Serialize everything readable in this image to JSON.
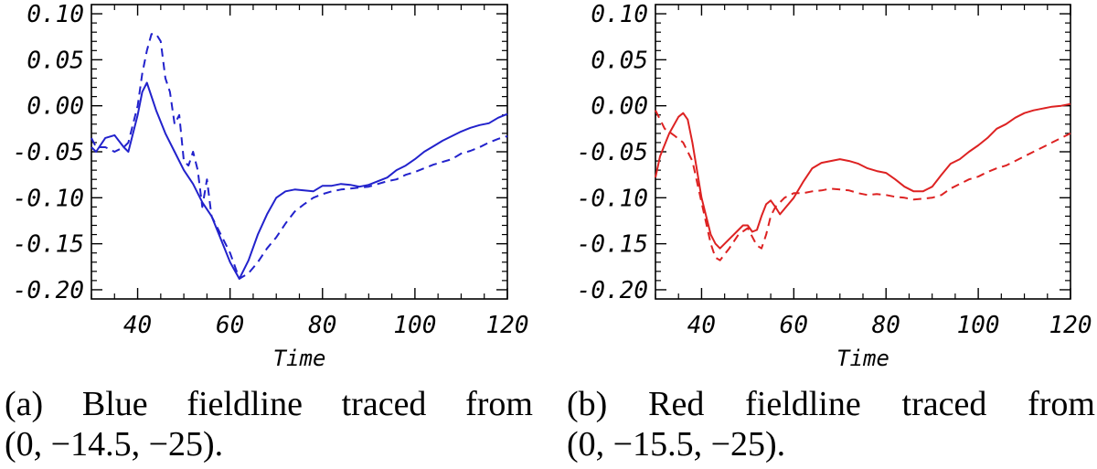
{
  "chart_data": [
    {
      "type": "line",
      "xlabel": "Time",
      "ylabel": "",
      "title": "",
      "xlim": [
        30,
        120
      ],
      "ylim": [
        -0.21,
        0.11
      ],
      "xticks": [
        40,
        60,
        80,
        100,
        120
      ],
      "xtick_labels": [
        "40",
        "60",
        "80",
        "100",
        "120"
      ],
      "yticks": [
        0.1,
        0.05,
        0.0,
        -0.05,
        -0.1,
        -0.15,
        -0.2
      ],
      "ytick_labels": [
        "0.10",
        "0.05",
        "0.00",
        "-0.05",
        "-0.10",
        "-0.15",
        "-0.20"
      ],
      "grid": false,
      "color": "#2222cc",
      "series": [
        {
          "style": "solid",
          "x": [
            30,
            31,
            33,
            35,
            37,
            38,
            40,
            41,
            42,
            44,
            46,
            48,
            50,
            52,
            54,
            56,
            58,
            60,
            62,
            64,
            66,
            68,
            70,
            72,
            74,
            76,
            78,
            80,
            82,
            84,
            86,
            88,
            90,
            92,
            94,
            96,
            98,
            100,
            102,
            104,
            106,
            108,
            110,
            112,
            114,
            116,
            118,
            120
          ],
          "y": [
            -0.045,
            -0.05,
            -0.035,
            -0.032,
            -0.045,
            -0.05,
            -0.01,
            0.015,
            0.025,
            -0.005,
            -0.03,
            -0.05,
            -0.07,
            -0.085,
            -0.105,
            -0.12,
            -0.145,
            -0.17,
            -0.188,
            -0.168,
            -0.14,
            -0.118,
            -0.1,
            -0.093,
            -0.091,
            -0.092,
            -0.093,
            -0.087,
            -0.087,
            -0.085,
            -0.086,
            -0.088,
            -0.086,
            -0.082,
            -0.078,
            -0.07,
            -0.065,
            -0.058,
            -0.05,
            -0.044,
            -0.038,
            -0.033,
            -0.028,
            -0.024,
            -0.021,
            -0.019,
            -0.013,
            -0.009
          ]
        },
        {
          "style": "dashed",
          "x": [
            30,
            31,
            33,
            35,
            37,
            38,
            40,
            41,
            42,
            43,
            44,
            45,
            46,
            47,
            48,
            49,
            50,
            51,
            52,
            53,
            54,
            55,
            56,
            58,
            60,
            62,
            64,
            66,
            68,
            70,
            72,
            74,
            76,
            78,
            80,
            82,
            84,
            86,
            88,
            90,
            92,
            94,
            96,
            98,
            100,
            102,
            104,
            106,
            108,
            110,
            112,
            114,
            116,
            118,
            120
          ],
          "y": [
            -0.035,
            -0.045,
            -0.045,
            -0.05,
            -0.045,
            -0.04,
            0.0,
            0.035,
            0.06,
            0.078,
            0.078,
            0.07,
            0.03,
            0.015,
            -0.02,
            -0.01,
            -0.06,
            -0.065,
            -0.05,
            -0.07,
            -0.11,
            -0.08,
            -0.12,
            -0.14,
            -0.16,
            -0.188,
            -0.182,
            -0.17,
            -0.155,
            -0.143,
            -0.128,
            -0.115,
            -0.107,
            -0.1,
            -0.096,
            -0.093,
            -0.091,
            -0.09,
            -0.089,
            -0.088,
            -0.085,
            -0.082,
            -0.08,
            -0.075,
            -0.072,
            -0.068,
            -0.064,
            -0.061,
            -0.058,
            -0.052,
            -0.049,
            -0.045,
            -0.04,
            -0.036,
            -0.033
          ]
        }
      ]
    },
    {
      "type": "line",
      "xlabel": "Time",
      "ylabel": "",
      "title": "",
      "xlim": [
        30,
        120
      ],
      "ylim": [
        -0.21,
        0.11
      ],
      "xticks": [
        40,
        60,
        80,
        100,
        120
      ],
      "xtick_labels": [
        "40",
        "60",
        "80",
        "100",
        "120"
      ],
      "yticks": [
        0.1,
        0.05,
        0.0,
        -0.05,
        -0.1,
        -0.15,
        -0.2
      ],
      "ytick_labels": [
        "0.10",
        "0.05",
        "0.00",
        "-0.05",
        "-0.10",
        "-0.15",
        "-0.20"
      ],
      "grid": false,
      "color": "#dd2222",
      "series": [
        {
          "style": "solid",
          "x": [
            30,
            31,
            33,
            35,
            36,
            37,
            38,
            40,
            42,
            43,
            44,
            45,
            46,
            48,
            49,
            50,
            51,
            52,
            53,
            54,
            55,
            56,
            57,
            58,
            60,
            62,
            64,
            66,
            68,
            70,
            72,
            74,
            76,
            78,
            80,
            82,
            84,
            86,
            88,
            90,
            92,
            94,
            96,
            98,
            100,
            102,
            104,
            106,
            108,
            110,
            112,
            114,
            116,
            118,
            120
          ],
          "y": [
            -0.078,
            -0.055,
            -0.03,
            -0.012,
            -0.008,
            -0.015,
            -0.04,
            -0.1,
            -0.14,
            -0.15,
            -0.155,
            -0.15,
            -0.145,
            -0.135,
            -0.13,
            -0.13,
            -0.137,
            -0.135,
            -0.12,
            -0.107,
            -0.103,
            -0.11,
            -0.118,
            -0.112,
            -0.1,
            -0.083,
            -0.068,
            -0.062,
            -0.06,
            -0.058,
            -0.06,
            -0.063,
            -0.068,
            -0.071,
            -0.073,
            -0.08,
            -0.088,
            -0.093,
            -0.093,
            -0.088,
            -0.075,
            -0.063,
            -0.058,
            -0.05,
            -0.043,
            -0.035,
            -0.025,
            -0.02,
            -0.013,
            -0.008,
            -0.005,
            -0.003,
            -0.001,
            0.0,
            0.002
          ]
        },
        {
          "style": "dashed",
          "x": [
            30,
            32,
            34,
            36,
            38,
            40,
            42,
            43,
            44,
            46,
            48,
            50,
            52,
            53,
            54,
            55,
            56,
            58,
            60,
            62,
            64,
            66,
            68,
            70,
            72,
            74,
            76,
            78,
            80,
            82,
            84,
            86,
            88,
            90,
            92,
            94,
            96,
            98,
            100,
            102,
            104,
            106,
            108,
            110,
            112,
            114,
            116,
            118,
            120
          ],
          "y": [
            -0.005,
            -0.025,
            -0.032,
            -0.04,
            -0.06,
            -0.105,
            -0.15,
            -0.165,
            -0.168,
            -0.155,
            -0.14,
            -0.133,
            -0.152,
            -0.155,
            -0.14,
            -0.12,
            -0.11,
            -0.1,
            -0.095,
            -0.095,
            -0.093,
            -0.092,
            -0.09,
            -0.091,
            -0.092,
            -0.095,
            -0.097,
            -0.096,
            -0.097,
            -0.099,
            -0.1,
            -0.102,
            -0.101,
            -0.1,
            -0.097,
            -0.09,
            -0.085,
            -0.08,
            -0.077,
            -0.072,
            -0.068,
            -0.065,
            -0.06,
            -0.055,
            -0.05,
            -0.045,
            -0.04,
            -0.035,
            -0.03
          ]
        }
      ]
    }
  ],
  "captions": {
    "a": {
      "line1": "(a) Blue fieldline traced from",
      "line2": "(0, −14.5, −25)."
    },
    "b": {
      "line1": "(b) Red fieldline traced from",
      "line2": "(0, −15.5, −25)."
    }
  }
}
